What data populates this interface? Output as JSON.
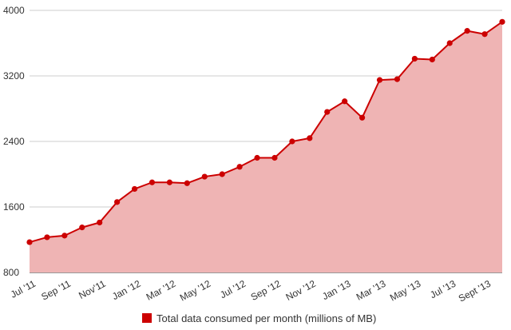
{
  "chart_data": {
    "type": "area",
    "title": "",
    "xlabel": "",
    "ylabel": "",
    "ylim": [
      800,
      4000
    ],
    "yticks": [
      800,
      1600,
      2400,
      3200,
      4000
    ],
    "grid": true,
    "legend_position": "bottom-center",
    "x": [
      "Jul '11",
      "Aug '11",
      "Sep '11",
      "Oct '11",
      "Nov '11",
      "Dec '11",
      "Jan '12",
      "Feb '12",
      "Mar '12",
      "Apr '12",
      "May '12",
      "Jun '12",
      "Jul '12",
      "Aug '12",
      "Sep '12",
      "Oct '12",
      "Nov '12",
      "Dec '12",
      "Jan '13",
      "Feb '13",
      "Mar '13",
      "Apr '13",
      "May '13",
      "Jun '13",
      "Jul '13",
      "Aug '13",
      "Sept '13",
      "Oct '13"
    ],
    "x_tick_labels": [
      {
        "index": 0,
        "label": "Jul '11"
      },
      {
        "index": 2,
        "label": "Sep '11"
      },
      {
        "index": 4,
        "label": "Nov'11"
      },
      {
        "index": 6,
        "label": "Jan '12"
      },
      {
        "index": 8,
        "label": "Mar '12"
      },
      {
        "index": 10,
        "label": "May '12"
      },
      {
        "index": 12,
        "label": "Jul '12"
      },
      {
        "index": 14,
        "label": "Sep '12"
      },
      {
        "index": 16,
        "label": "Nov '12"
      },
      {
        "index": 18,
        "label": "Jan '13"
      },
      {
        "index": 20,
        "label": "Mar '13"
      },
      {
        "index": 22,
        "label": "May '13"
      },
      {
        "index": 24,
        "label": "Jul '13"
      },
      {
        "index": 26,
        "label": "Sept '13"
      }
    ],
    "series": [
      {
        "name": "Total data consumed per month (millions of MB)",
        "color": "#cc0000",
        "fill_color": "#efb4b4",
        "values": [
          1170,
          1230,
          1250,
          1350,
          1410,
          1660,
          1820,
          1900,
          1900,
          1890,
          1970,
          2000,
          2090,
          2200,
          2200,
          2400,
          2440,
          2760,
          2890,
          2690,
          3150,
          3160,
          3410,
          3400,
          3600,
          3750,
          3710,
          3860
        ]
      }
    ]
  }
}
